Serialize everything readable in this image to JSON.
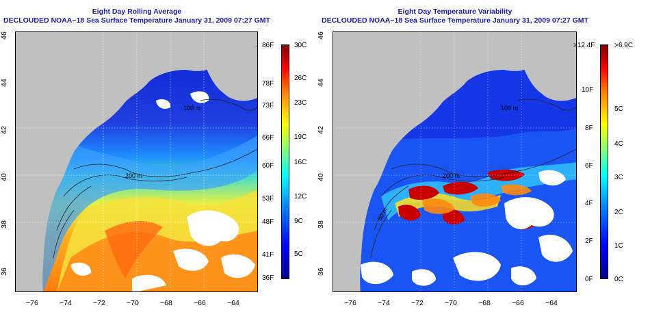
{
  "panels": [
    {
      "id": "left",
      "title_line1": "Eight Day Rolling Average",
      "title_line2": "DECLOUDED NOAA−18 Sea Surface Temperature January 31, 2009 07:27 GMT",
      "x_ticks": [
        "−76",
        "−74",
        "−72",
        "−70",
        "−68",
        "−66",
        "−64"
      ],
      "y_ticks": [
        "46",
        "44",
        "42",
        "40",
        "38",
        "36"
      ],
      "isobath_labels": [
        "100 m",
        "200 m"
      ],
      "colorbar": {
        "left_labels": [
          "86F",
          "78F",
          "73F",
          "66F",
          "60F",
          "53F",
          "48F",
          "41F",
          "36F"
        ],
        "right_labels": [
          "30C",
          "26C",
          "23C",
          "19C",
          "16C",
          "12C",
          "9C",
          "5C"
        ]
      }
    },
    {
      "id": "right",
      "title_line1": "Eight Day Temperature Variability",
      "title_line2": "DECLOUDED NOAA−18 Sea Surface Temperature January 31, 2009 07:27 GMT",
      "x_ticks": [
        "−76",
        "−74",
        "−72",
        "−70",
        "−68",
        "−66",
        "−64"
      ],
      "y_ticks": [
        "46",
        "44",
        "42",
        "40",
        "38",
        "36"
      ],
      "isobath_labels": [
        "100 m",
        "200 m",
        "50 m"
      ],
      "colorbar": {
        "left_labels": [
          ">12.4F",
          "10F",
          "8F",
          "6F",
          "4F",
          "2F",
          "0F"
        ],
        "right_labels": [
          ">6.9C",
          "5C",
          "4C",
          "3C",
          "2C",
          "1C",
          "0C"
        ]
      }
    }
  ],
  "colors": {
    "title": "#1a1aa8",
    "land": "#c0c0c0",
    "cloud": "#ffffff",
    "jet_low": "#00008f",
    "jet_high": "#800000"
  }
}
